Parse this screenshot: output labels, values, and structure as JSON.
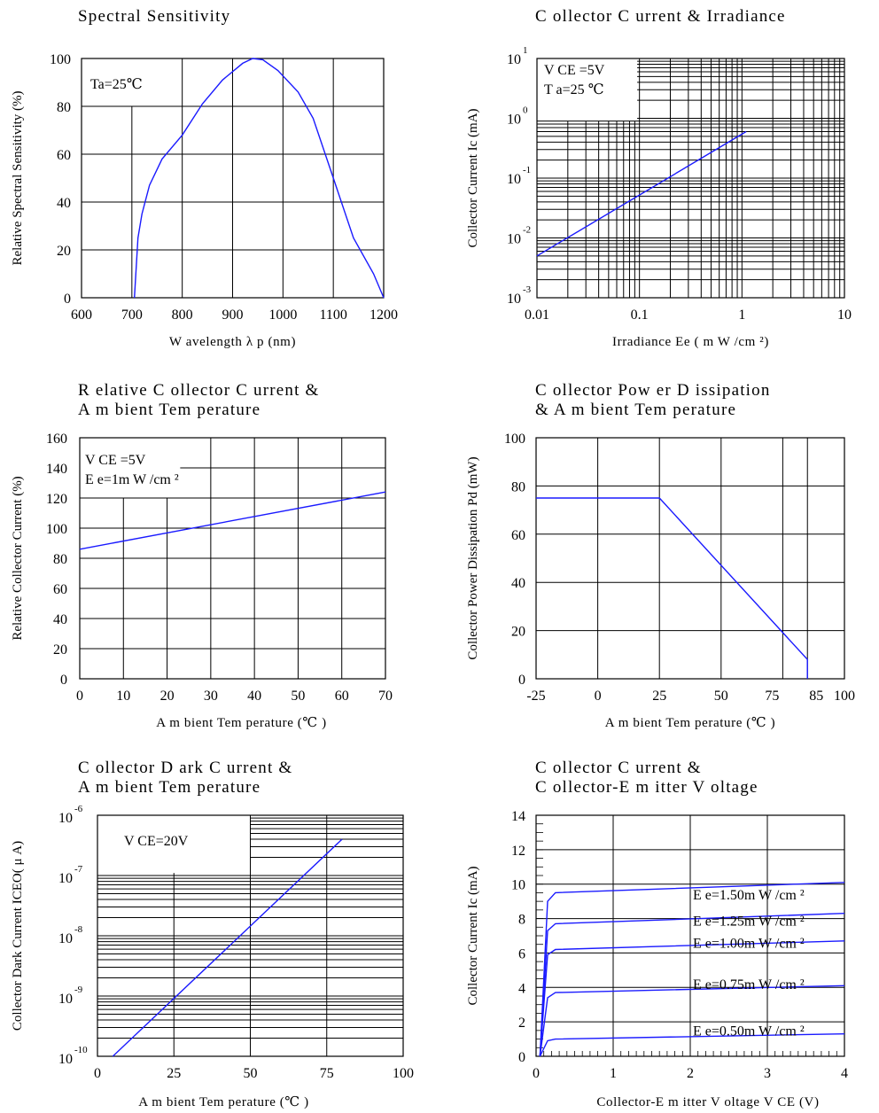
{
  "chart_data": [
    {
      "id": "c1",
      "type": "line",
      "title": "Spectral Sensitivity",
      "xlabel": "W avelength  λ p (nm)",
      "ylabel": "Relative Spectral Sensitivity (%)",
      "xlim": [
        600,
        1200
      ],
      "ylim": [
        0,
        100
      ],
      "xticks": [
        "600",
        "700",
        "800",
        "900",
        "1000",
        "1100",
        "1200"
      ],
      "yticks": [
        "0",
        "20",
        "40",
        "60",
        "80",
        "100"
      ],
      "annotations": [
        "Ta=25℃"
      ],
      "series": [
        {
          "color": "#1a1aff",
          "x": [
            705,
            712,
            720,
            735,
            760,
            800,
            840,
            880,
            920,
            940,
            960,
            990,
            1030,
            1060,
            1100,
            1140,
            1180,
            1200
          ],
          "y": [
            0,
            25,
            35,
            47,
            58,
            68,
            81,
            91,
            98,
            100,
            99.5,
            95,
            86,
            75,
            50,
            25,
            10,
            0
          ]
        }
      ]
    },
    {
      "id": "c2",
      "type": "line",
      "title": "C ollector C urrent & Irradiance",
      "xlabel": "Irradiance Ee ( m W /cm ²)",
      "ylabel": "Collector Current Ic (mA)",
      "xscale": "log",
      "yscale": "log",
      "xlim": [
        0.01,
        10
      ],
      "ylim": [
        0.001,
        10
      ],
      "xticks": [
        "0.01",
        "0.1",
        "1",
        "10"
      ],
      "yticks": [
        "10-3",
        "10-2",
        "10-1",
        "100",
        "101"
      ],
      "annotations": [
        "V CE =5V",
        "T a=25 ℃"
      ],
      "series": [
        {
          "color": "#1a1aff",
          "x": [
            0.01,
            1.1
          ],
          "y": [
            0.005,
            0.6
          ]
        }
      ]
    },
    {
      "id": "c3",
      "type": "line",
      "title": "R elative C ollector C urrent &\nA m bient Tem perature",
      "xlabel": "A m bient Tem perature (℃ )",
      "ylabel": "Relative Collector  Current (%)",
      "xlim": [
        0,
        70
      ],
      "ylim": [
        0,
        160
      ],
      "xticks": [
        "0",
        "10",
        "20",
        "30",
        "40",
        "50",
        "60",
        "70"
      ],
      "yticks": [
        "0",
        "20",
        "40",
        "60",
        "80",
        "100",
        "120",
        "140",
        "160"
      ],
      "annotations": [
        "V CE =5V",
        "E e=1m W /cm ²"
      ],
      "series": [
        {
          "color": "#1a1aff",
          "x": [
            0,
            70
          ],
          "y": [
            86,
            124
          ]
        }
      ]
    },
    {
      "id": "c4",
      "type": "line",
      "title": "C ollector Pow er D issipation\n& A m bient Tem perature",
      "xlabel": "A m bient Tem perature (℃ )",
      "ylabel": "Collector Power Dissipation Pd (mW)",
      "xlim": [
        -25,
        100
      ],
      "ylim": [
        0,
        100
      ],
      "xticks": [
        "-25",
        "0",
        "25",
        "50",
        "75",
        "85",
        "100"
      ],
      "yticks": [
        "0",
        "20",
        "40",
        "60",
        "80",
        "100"
      ],
      "series": [
        {
          "color": "#1a1aff",
          "x": [
            -25,
            25,
            85,
            85
          ],
          "y": [
            75,
            75,
            8,
            0
          ]
        }
      ]
    },
    {
      "id": "c5",
      "type": "line",
      "title": " C ollector D ark C urrent &\nA m bient Tem perature",
      "xlabel": "A m bient Tem perature (℃ )",
      "ylabel": "Collector   Dark Current ICEO( μ A)",
      "yscale": "log",
      "xlim": [
        0,
        100
      ],
      "ylim": [
        1e-10,
        1e-06
      ],
      "xticks": [
        "0",
        "25",
        "50",
        "75",
        "100"
      ],
      "yticks": [
        "10-10",
        "10-9",
        "10-8",
        "10-7",
        "10-6"
      ],
      "annotations": [
        "V CE=20V"
      ],
      "series": [
        {
          "color": "#1a1aff",
          "x": [
            5,
            80
          ],
          "y": [
            1e-10,
            4e-07
          ]
        }
      ]
    },
    {
      "id": "c6",
      "type": "line",
      "title": "C ollector C urrent &\nC ollector-E m itter V oltage",
      "xlabel": "Collector-E m itter V oltage V CE (V)",
      "ylabel": "Collector Current Ic (mA)",
      "xlim": [
        0,
        4
      ],
      "ylim": [
        0,
        14
      ],
      "xticks": [
        "0",
        "1",
        "2",
        "3",
        "4"
      ],
      "yticks": [
        "0",
        "2",
        "4",
        "6",
        "8",
        "10",
        "12",
        "14"
      ],
      "series": [
        {
          "name": "E e=1.50m W /cm ²",
          "color": "#1a1aff",
          "x": [
            0.05,
            0.15,
            0.25,
            4
          ],
          "y": [
            0,
            9.0,
            9.5,
            10.1
          ]
        },
        {
          "name": "E e=1.25m W /cm ²",
          "color": "#1a1aff",
          "x": [
            0.05,
            0.15,
            0.25,
            4
          ],
          "y": [
            0,
            7.3,
            7.7,
            8.3
          ]
        },
        {
          "name": "E e=1.00m W /cm ²",
          "color": "#1a1aff",
          "x": [
            0.05,
            0.15,
            0.25,
            4
          ],
          "y": [
            0,
            5.9,
            6.2,
            6.7
          ]
        },
        {
          "name": "E e=0.75m W /cm ²",
          "color": "#1a1aff",
          "x": [
            0.05,
            0.15,
            0.25,
            4
          ],
          "y": [
            0,
            3.4,
            3.7,
            4.1
          ]
        },
        {
          "name": "E e=0.50m W /cm ²",
          "color": "#1a1aff",
          "x": [
            0.05,
            0.15,
            0.25,
            4
          ],
          "y": [
            0,
            0.9,
            1.0,
            1.3
          ]
        }
      ]
    }
  ]
}
